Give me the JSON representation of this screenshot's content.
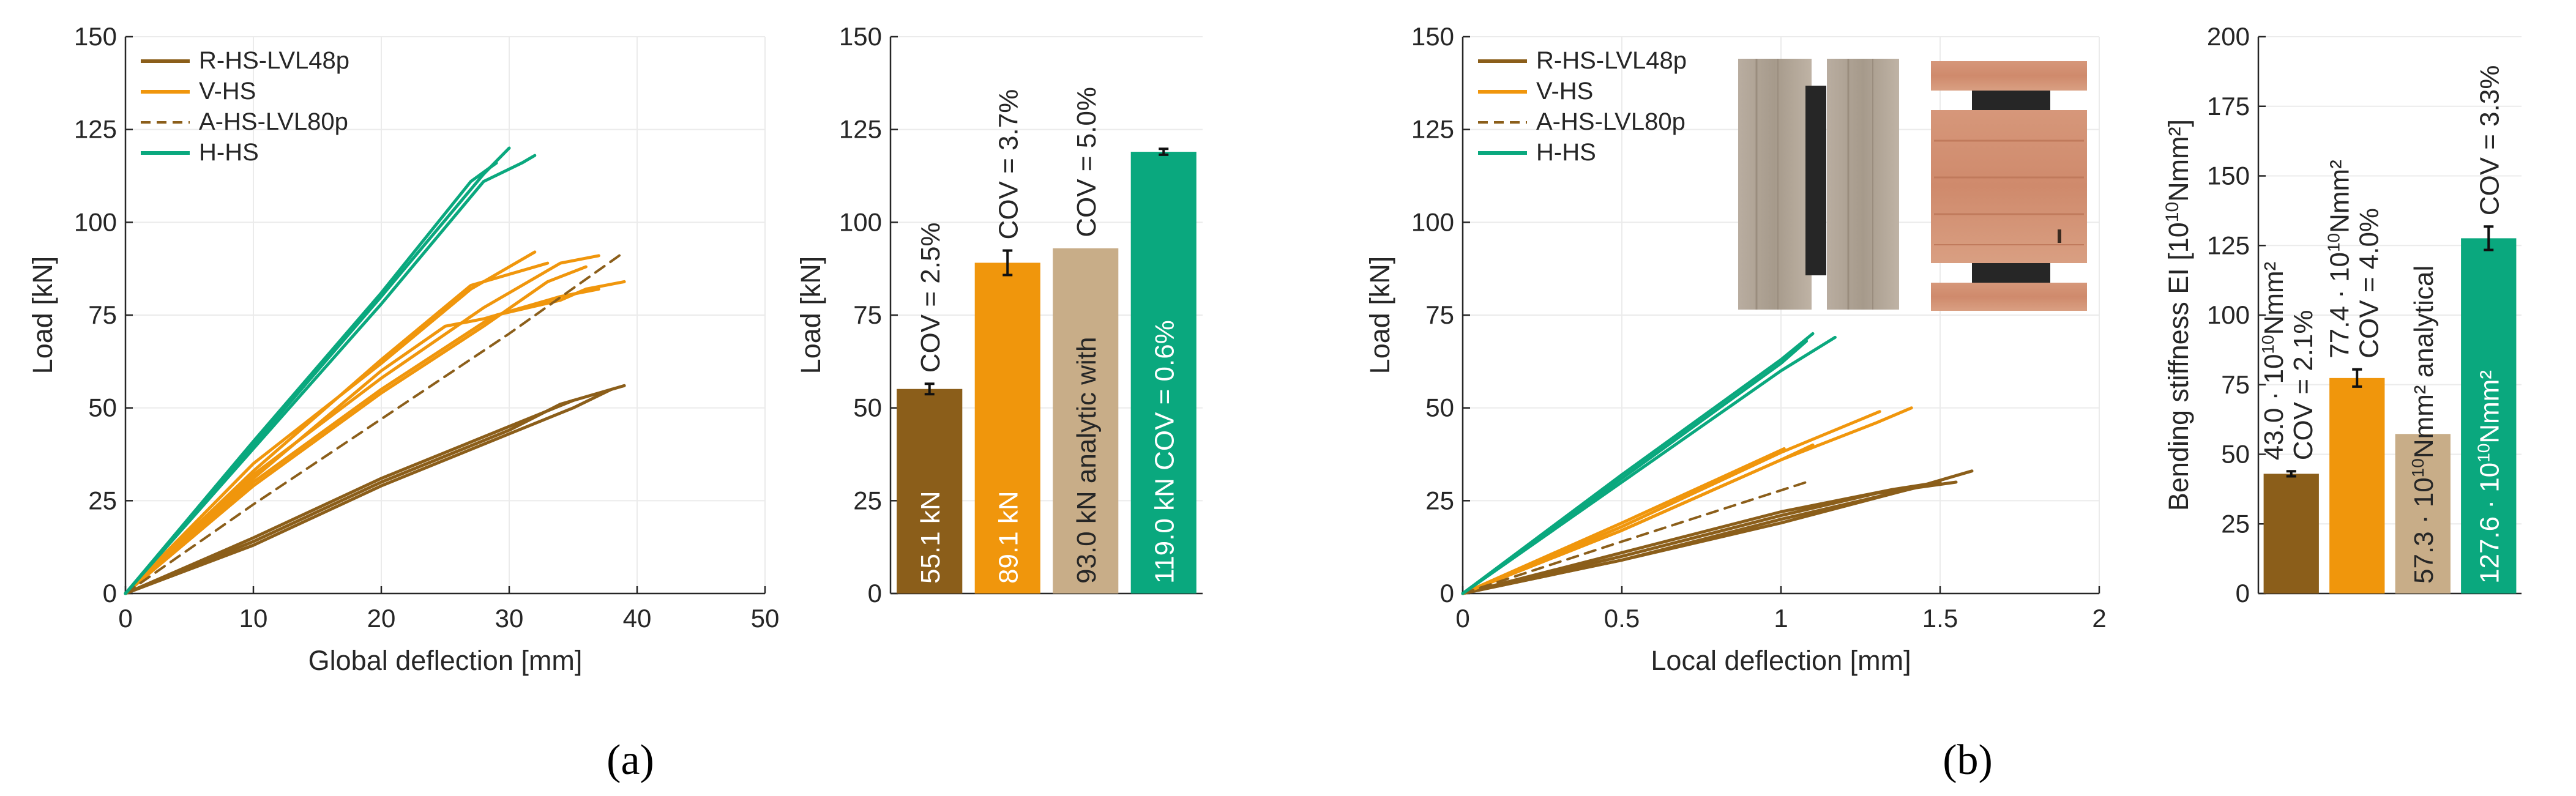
{
  "colors": {
    "brown": "#8b5e1a",
    "orange": "#f0960c",
    "tan": "#c8ad88",
    "green": "#0aa87e"
  },
  "captions": {
    "a": "(a)",
    "b": "(b)"
  },
  "chart_data": [
    {
      "id": "a-line",
      "type": "line",
      "xlabel": "Global deflection [mm]",
      "ylabel": "Load [kN]",
      "xlim": [
        0,
        50
      ],
      "ylim": [
        0,
        150
      ],
      "xticks": [
        "0",
        "10",
        "20",
        "30",
        "40",
        "50"
      ],
      "yticks": [
        "0",
        "25",
        "50",
        "75",
        "100",
        "125",
        "150"
      ],
      "grid": true,
      "legend_position": "top-left",
      "legend": [
        {
          "label": "R-HS-LVL48p",
          "color": "brown",
          "dash": false
        },
        {
          "label": "V-HS",
          "color": "orange",
          "dash": false
        },
        {
          "label": "A-HS-LVL80p",
          "color": "brown",
          "dash": true
        },
        {
          "label": "H-HS",
          "color": "green",
          "dash": false
        }
      ],
      "series": [
        {
          "color": "brown",
          "dash": false,
          "points": [
            [
              0,
              0
            ],
            [
              10,
              14
            ],
            [
              20,
              30
            ],
            [
              30,
              44
            ],
            [
              34,
              51
            ],
            [
              39,
              56
            ]
          ]
        },
        {
          "color": "brown",
          "dash": false,
          "points": [
            [
              0,
              0
            ],
            [
              10,
              13
            ],
            [
              20,
              29
            ],
            [
              30,
              43
            ],
            [
              35,
              50
            ],
            [
              38,
              55
            ]
          ]
        },
        {
          "color": "brown",
          "dash": false,
          "points": [
            [
              0,
              0
            ],
            [
              10,
              15
            ],
            [
              20,
              31
            ],
            [
              30,
              45
            ],
            [
              35,
              52
            ]
          ]
        },
        {
          "color": "orange",
          "dash": false,
          "points": [
            [
              0,
              0
            ],
            [
              10,
              35
            ],
            [
              20,
              62
            ],
            [
              27,
              82
            ],
            [
              32,
              92
            ]
          ]
        },
        {
          "color": "orange",
          "dash": false,
          "points": [
            [
              0,
              0
            ],
            [
              10,
              32
            ],
            [
              20,
              58
            ],
            [
              28,
              77
            ],
            [
              34,
              89
            ],
            [
              37,
              91
            ]
          ]
        },
        {
          "color": "orange",
          "dash": false,
          "points": [
            [
              0,
              0
            ],
            [
              10,
              30
            ],
            [
              20,
              55
            ],
            [
              28,
              73
            ],
            [
              29,
              75
            ],
            [
              34,
              79
            ],
            [
              36,
              82
            ],
            [
              39,
              84
            ]
          ]
        },
        {
          "color": "orange",
          "dash": false,
          "points": [
            [
              0,
              0
            ],
            [
              10,
              31
            ],
            [
              20,
              60
            ],
            [
              25,
              72
            ],
            [
              28,
              74
            ],
            [
              34,
              80
            ],
            [
              37,
              82
            ]
          ]
        },
        {
          "color": "orange",
          "dash": false,
          "points": [
            [
              0,
              0
            ],
            [
              10,
              33
            ],
            [
              20,
              63
            ],
            [
              27,
              83
            ],
            [
              33,
              89
            ]
          ]
        },
        {
          "color": "orange",
          "dash": false,
          "points": [
            [
              0,
              0
            ],
            [
              10,
              29
            ],
            [
              20,
              54
            ],
            [
              28,
              72
            ],
            [
              33,
              84
            ],
            [
              36,
              88
            ]
          ]
        },
        {
          "color": "brown",
          "dash": true,
          "points": [
            [
              0,
              0
            ],
            [
              10,
              24
            ],
            [
              20,
              47
            ],
            [
              30,
              70
            ],
            [
              39,
              92
            ]
          ]
        },
        {
          "color": "green",
          "dash": false,
          "points": [
            [
              0,
              0
            ],
            [
              10,
              40
            ],
            [
              20,
              80
            ],
            [
              28,
              113
            ],
            [
              30,
              120
            ]
          ]
        },
        {
          "color": "green",
          "dash": false,
          "points": [
            [
              0,
              0
            ],
            [
              10,
              39
            ],
            [
              20,
              78
            ],
            [
              28,
              111
            ],
            [
              31,
              116
            ],
            [
              32,
              118
            ]
          ]
        },
        {
          "color": "green",
          "dash": false,
          "points": [
            [
              0,
              0
            ],
            [
              10,
              41
            ],
            [
              20,
              81
            ],
            [
              27,
              111
            ],
            [
              29,
              116
            ]
          ]
        }
      ]
    },
    {
      "id": "a-bar",
      "type": "bar",
      "ylabel": "Load [kN]",
      "ylim": [
        0,
        150
      ],
      "yticks": [
        "0",
        "25",
        "50",
        "75",
        "100",
        "125",
        "150"
      ],
      "grid": true,
      "bars": [
        {
          "value": 55.1,
          "err": 1.4,
          "color": "brown",
          "inside": "55.1 kN",
          "inside_color": "#ffffff",
          "above": "COV = 2.5%"
        },
        {
          "value": 89.1,
          "err": 3.3,
          "color": "orange",
          "inside": "89.1 kN",
          "inside_color": "#ffffff",
          "above": "COV = 3.7%"
        },
        {
          "value": 93.0,
          "err": 0,
          "color": "tan",
          "inside": "93.0 kN analytic with",
          "inside_color": "#262626",
          "above": "COV = 5.0%"
        },
        {
          "value": 119.0,
          "err": 0.8,
          "color": "green",
          "inside": "119.0 kN COV = 0.6%",
          "inside_color": "#ffffff",
          "above": ""
        }
      ]
    },
    {
      "id": "b-line",
      "type": "line",
      "xlabel": "Local deflection [mm]",
      "ylabel": "Load [kN]",
      "xlim": [
        0,
        2
      ],
      "ylim": [
        0,
        150
      ],
      "xticks": [
        "0",
        "0.5",
        "1",
        "1.5",
        "2"
      ],
      "yticks": [
        "0",
        "25",
        "50",
        "75",
        "100",
        "125",
        "150"
      ],
      "grid": true,
      "legend_position": "top-left",
      "legend": [
        {
          "label": "R-HS-LVL48p",
          "color": "brown",
          "dash": false
        },
        {
          "label": "V-HS",
          "color": "orange",
          "dash": false
        },
        {
          "label": "A-HS-LVL80p",
          "color": "brown",
          "dash": true
        },
        {
          "label": "H-HS",
          "color": "green",
          "dash": false
        }
      ],
      "series": [
        {
          "color": "brown",
          "dash": false,
          "points": [
            [
              0,
              0
            ],
            [
              0.5,
              9
            ],
            [
              1.0,
              19
            ],
            [
              1.4,
              28
            ],
            [
              1.6,
              33
            ]
          ]
        },
        {
          "color": "brown",
          "dash": false,
          "points": [
            [
              0,
              0
            ],
            [
              0.5,
              10
            ],
            [
              1.0,
              21
            ],
            [
              1.3,
              27
            ],
            [
              1.55,
              30
            ]
          ]
        },
        {
          "color": "brown",
          "dash": false,
          "points": [
            [
              0,
              0
            ],
            [
              0.5,
              11
            ],
            [
              1.0,
              22
            ],
            [
              1.35,
              28
            ],
            [
              1.5,
              30
            ]
          ]
        },
        {
          "color": "brown",
          "dash": false,
          "points": [
            [
              0,
              0
            ],
            [
              0.5,
              9
            ],
            [
              1.0,
              20
            ],
            [
              1.45,
              29
            ]
          ]
        },
        {
          "color": "orange",
          "dash": false,
          "points": [
            [
              0,
              0
            ],
            [
              0.5,
              17
            ],
            [
              1.0,
              36
            ],
            [
              1.3,
              46
            ],
            [
              1.41,
              50
            ]
          ]
        },
        {
          "color": "orange",
          "dash": false,
          "points": [
            [
              0,
              0
            ],
            [
              0.5,
              18
            ],
            [
              1.0,
              38
            ],
            [
              1.31,
              49
            ]
          ]
        },
        {
          "color": "orange",
          "dash": false,
          "points": [
            [
              0,
              0
            ],
            [
              0.5,
              19
            ],
            [
              1.01,
              39
            ]
          ]
        },
        {
          "color": "orange",
          "dash": false,
          "points": [
            [
              0,
              0
            ],
            [
              0.5,
              17
            ],
            [
              1.0,
              36
            ],
            [
              1.1,
              40
            ]
          ]
        },
        {
          "color": "brown",
          "dash": true,
          "points": [
            [
              0,
              0
            ],
            [
              0.5,
              14
            ],
            [
              1.08,
              30
            ]
          ]
        },
        {
          "color": "green",
          "dash": false,
          "points": [
            [
              0,
              0
            ],
            [
              0.5,
              30
            ],
            [
              1.0,
              60
            ],
            [
              1.17,
              69
            ]
          ]
        },
        {
          "color": "green",
          "dash": false,
          "points": [
            [
              0,
              0
            ],
            [
              0.5,
              32
            ],
            [
              1.0,
              63
            ],
            [
              1.1,
              70
            ]
          ]
        },
        {
          "color": "green",
          "dash": false,
          "points": [
            [
              0,
              0
            ],
            [
              0.5,
              31
            ],
            [
              1.0,
              62
            ],
            [
              1.08,
              68
            ]
          ]
        }
      ]
    },
    {
      "id": "b-bar",
      "type": "bar",
      "ylabel": "Bending stiffness EI [10",
      "ylabel_sup": "10",
      "ylabel_end": "Nmm²]",
      "ylim": [
        0,
        200
      ],
      "yticks": [
        "0",
        "25",
        "50",
        "75",
        "100",
        "125",
        "150",
        "175",
        "200"
      ],
      "grid": true,
      "bars": [
        {
          "value": 43.0,
          "err": 0.9,
          "color": "brown",
          "inside": "",
          "inside_color": "#ffffff",
          "above": "COV = 2.1%",
          "above2": "43.0 · 10",
          "above2_sup": "10",
          "above2_end": "Nmm²"
        },
        {
          "value": 77.4,
          "err": 3.1,
          "color": "orange",
          "inside": "",
          "inside_color": "#ffffff",
          "above": "COV = 4.0%",
          "above2": "77.4 · 10",
          "above2_sup": "10",
          "above2_end": "Nmm²"
        },
        {
          "value": 57.3,
          "err": 0,
          "color": "tan",
          "inside": "57.3 · 10",
          "inside_sup": "10",
          "inside_end": "Nmm² analytical",
          "inside_color": "#262626",
          "above": ""
        },
        {
          "value": 127.6,
          "err": 4.2,
          "color": "green",
          "inside": "127.6 · 10",
          "inside_sup": "10",
          "inside_end": "Nmm²",
          "inside_color": "#ffffff",
          "above": "COV = 3.3%"
        }
      ]
    }
  ]
}
